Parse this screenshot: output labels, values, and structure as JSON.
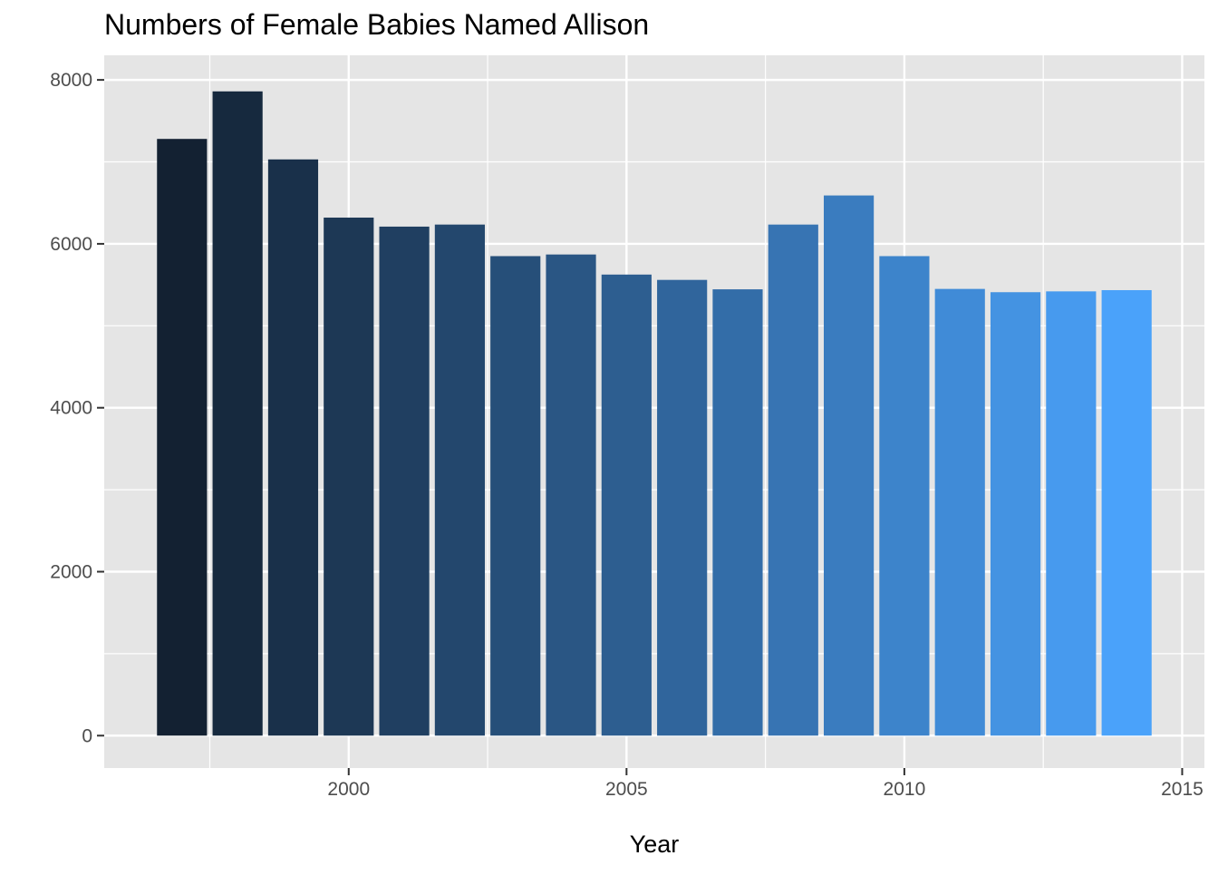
{
  "chart_data": {
    "type": "bar",
    "title": "Numbers of Female Babies Named Allison",
    "xlabel": "Year",
    "ylabel": "",
    "x": [
      1997,
      1998,
      1999,
      2000,
      2001,
      2002,
      2003,
      2004,
      2005,
      2006,
      2007,
      2008,
      2009,
      2010,
      2011,
      2012,
      2013,
      2014
    ],
    "values": [
      7280,
      7860,
      7030,
      6320,
      6210,
      6235,
      5850,
      5870,
      5625,
      5560,
      5445,
      6235,
      6590,
      5850,
      5450,
      5410,
      5420,
      5435
    ],
    "xlim": [
      1995.6,
      2015.4
    ],
    "ylim": [
      -395,
      8300
    ],
    "xticks": [
      2000,
      2005,
      2010,
      2015
    ],
    "yticks": [
      0,
      2000,
      4000,
      6000,
      8000
    ],
    "fill_gradient": [
      "#132132",
      "#4aa2fa"
    ],
    "legend": "none",
    "grid": true
  }
}
